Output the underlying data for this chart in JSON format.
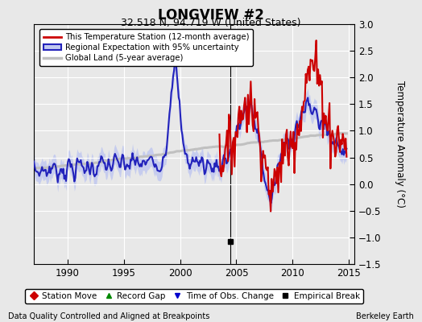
{
  "title": "LONGVIEW #2",
  "subtitle": "32.518 N, 94.719 W (United States)",
  "ylabel": "Temperature Anomaly (°C)",
  "xlabel_left": "Data Quality Controlled and Aligned at Breakpoints",
  "xlabel_right": "Berkeley Earth",
  "ylim": [
    -1.5,
    3.0
  ],
  "xlim": [
    1987.0,
    2015.5
  ],
  "xticks": [
    1990,
    1995,
    2000,
    2005,
    2010,
    2015
  ],
  "yticks": [
    -1.5,
    -1,
    -0.5,
    0,
    0.5,
    1,
    1.5,
    2,
    2.5,
    3
  ],
  "station_color": "#cc0000",
  "regional_color": "#2222bb",
  "regional_fill_color": "#c0c8f0",
  "global_color": "#c0c0c0",
  "background_color": "#e8e8e8",
  "plot_bg_color": "#e8e8e8",
  "legend_items": [
    "This Temperature Station (12-month average)",
    "Regional Expectation with 95% uncertainty",
    "Global Land (5-year average)"
  ],
  "marker_legend": [
    {
      "label": "Station Move",
      "color": "#cc0000",
      "marker": "D"
    },
    {
      "label": "Record Gap",
      "color": "#008800",
      "marker": "^"
    },
    {
      "label": "Time of Obs. Change",
      "color": "#0000cc",
      "marker": "v"
    },
    {
      "label": "Empirical Break",
      "color": "#000000",
      "marker": "s"
    }
  ],
  "empirical_break_x": 2004.5
}
